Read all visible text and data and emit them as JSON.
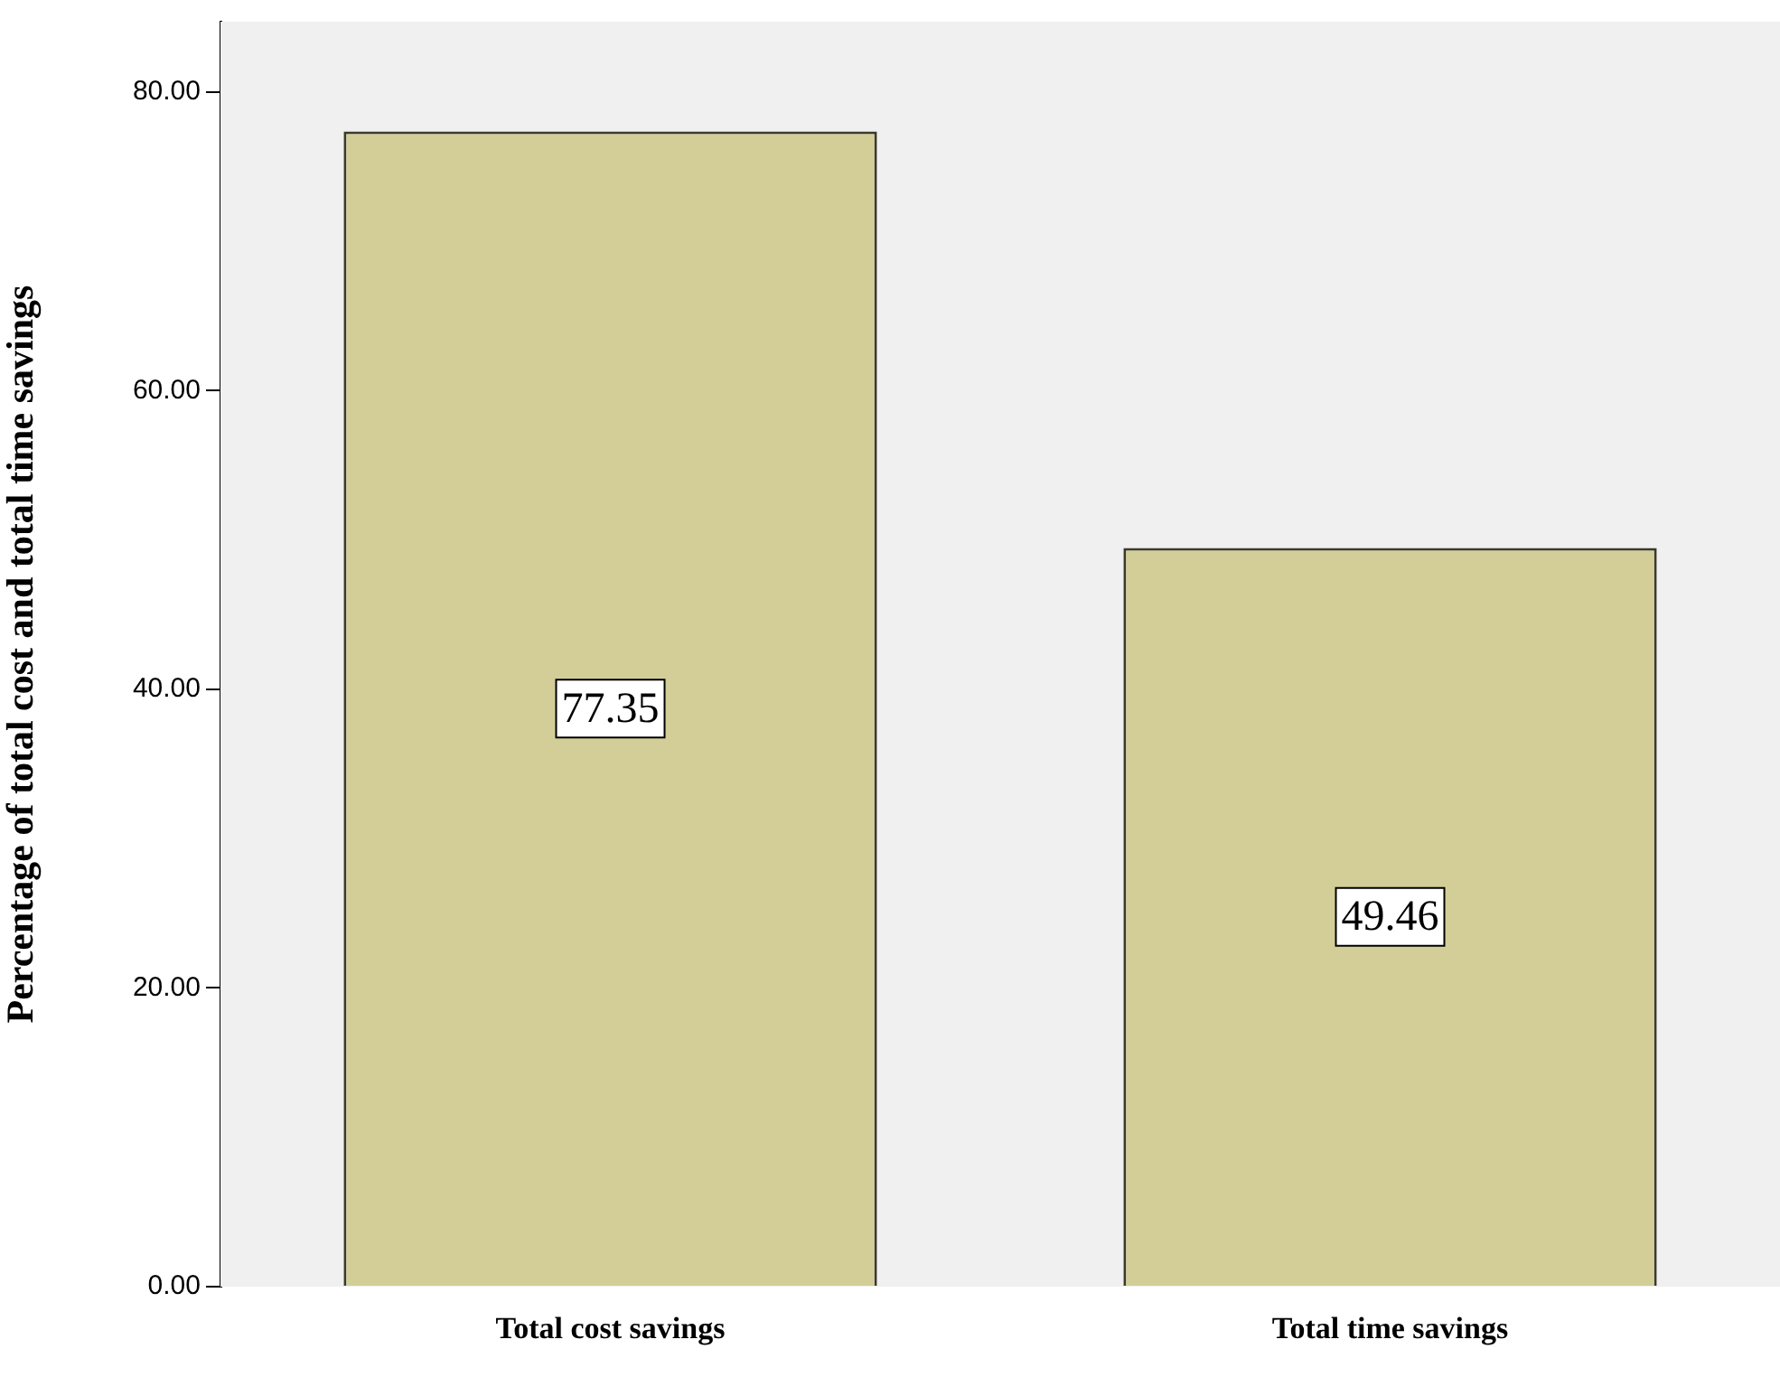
{
  "chart_data": {
    "type": "bar",
    "ylabel": "Percentage of total cost and total time savings",
    "categories": [
      "Total cost savings",
      "Total time savings"
    ],
    "values": [
      77.35,
      49.46
    ],
    "color": "#d3ce97",
    "ylim": [
      0,
      84.7
    ],
    "yticks": [
      {
        "value": 0,
        "label": "0.00"
      },
      {
        "value": 20,
        "label": "20.00"
      },
      {
        "value": 40,
        "label": "40.00"
      },
      {
        "value": 60,
        "label": "60.00"
      },
      {
        "value": 80,
        "label": "80.00"
      }
    ],
    "grid": false,
    "legend": false,
    "data_labels": true
  }
}
